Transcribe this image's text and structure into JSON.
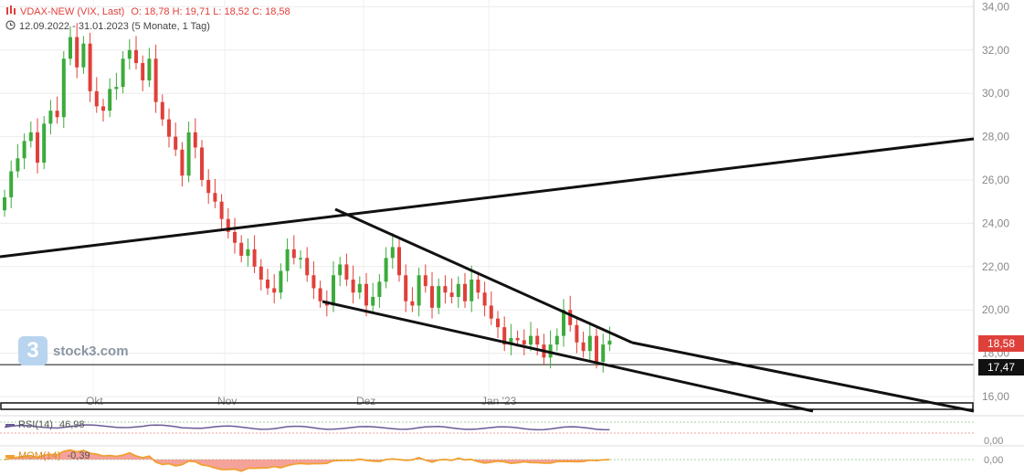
{
  "header": {
    "name": "VDAX-NEW (VIX, Last)",
    "ohlc": "O: 18,78  H: 19,71  L: 18,52  C: 18,58",
    "range": "12.09.2022 - 31.01.2023  (5 Monate, 1 Tag)"
  },
  "brand": {
    "logo_char": "3",
    "name": "stock3.com"
  },
  "badges": {
    "last": "18,58",
    "hline": "17,47"
  },
  "indicators": {
    "rsi": {
      "label": "RSI(14)",
      "value": "46,98",
      "axis": "0,00"
    },
    "mom": {
      "label": "MOM(14)",
      "value": "-0,39",
      "axis": "0,00"
    }
  },
  "colors": {
    "up": "#3cab3c",
    "down": "#e0403a",
    "rsi_line": "#6b5b95",
    "mom_line": "#f0a030",
    "mom_neg": "#f28b82",
    "mom_pos": "#8fd18f"
  },
  "chart_data": {
    "type": "candlestick",
    "title": "VDAX-NEW (VIX, Last)",
    "x_labels": [
      "Okt",
      "Nov",
      "Dez",
      "Jan '23"
    ],
    "y_ticks": [
      "16,00",
      "18,00",
      "20,00",
      "22,00",
      "24,00",
      "26,00",
      "28,00",
      "30,00",
      "32,00",
      "34,00"
    ],
    "ylim": [
      16,
      34
    ],
    "last_value": 18.58,
    "horizontal_line": 17.47,
    "closes": [
      25.2,
      26.4,
      27.0,
      27.8,
      28.2,
      26.8,
      28.6,
      29.2,
      28.9,
      31.6,
      32.6,
      31.2,
      32.3,
      30.1,
      29.4,
      29.2,
      30.2,
      30.3,
      31.6,
      32.0,
      31.4,
      30.6,
      31.6,
      29.6,
      28.8,
      28.0,
      27.4,
      26.2,
      28.2,
      27.5,
      26.0,
      25.4,
      25.0,
      24.2,
      23.6,
      23.1,
      22.5,
      22.8,
      22.0,
      21.4,
      21.0,
      20.8,
      21.8,
      22.8,
      22.4,
      22.4,
      21.6,
      21.0,
      20.4,
      20.2,
      21.6,
      22.1,
      21.4,
      20.8,
      21.2,
      20.2,
      20.6,
      21.3,
      22.4,
      22.9,
      21.6,
      20.4,
      20.2,
      21.6,
      21.1,
      20.1,
      21.1,
      20.8,
      20.6,
      21.2,
      20.4,
      21.4,
      20.8,
      20.2,
      19.6,
      19.2,
      18.4,
      18.7,
      18.6,
      18.4,
      18.8,
      18.4,
      17.8,
      18.4,
      18.8,
      20.0,
      19.3,
      18.5,
      18.1,
      18.8,
      17.6,
      18.4,
      18.58
    ]
  }
}
